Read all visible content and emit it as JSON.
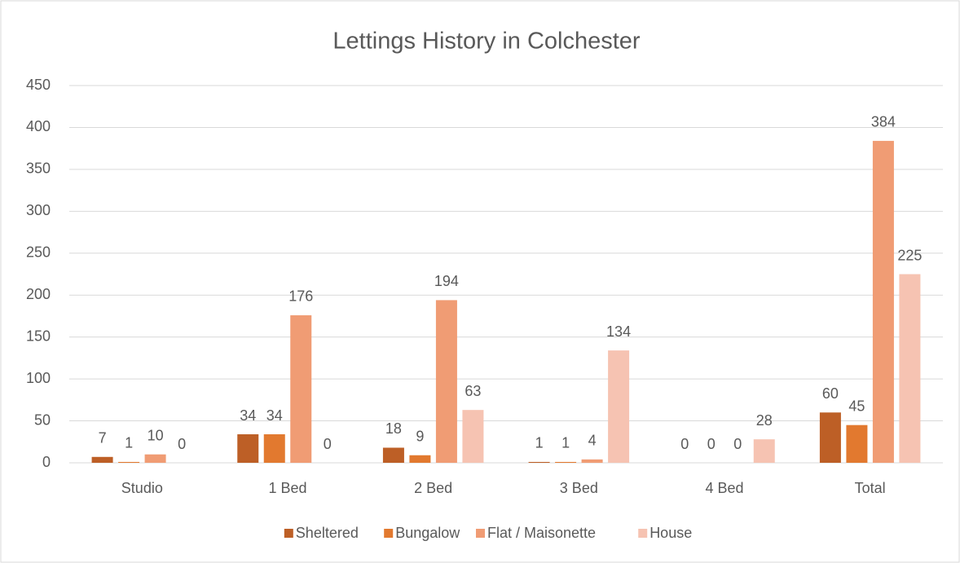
{
  "chart_data": {
    "type": "bar",
    "title": "Lettings History in Colchester",
    "categories": [
      "Studio",
      "1 Bed",
      "2 Bed",
      "3 Bed",
      "4 Bed",
      "Total"
    ],
    "series": [
      {
        "name": "Sheltered",
        "color": "#bd5f26",
        "values": [
          7,
          34,
          18,
          1,
          0,
          60
        ]
      },
      {
        "name": "Bungalow",
        "color": "#e2792f",
        "values": [
          1,
          34,
          9,
          1,
          0,
          45
        ]
      },
      {
        "name": "Flat / Maisonette",
        "color": "#f09c74",
        "values": [
          10,
          176,
          194,
          4,
          0,
          384
        ]
      },
      {
        "name": "House",
        "color": "#f6c3b2",
        "values": [
          0,
          0,
          63,
          134,
          28,
          225
        ]
      }
    ],
    "ylim": [
      0,
      450
    ],
    "yticks": [
      0,
      50,
      100,
      150,
      200,
      250,
      300,
      350,
      400,
      450
    ],
    "grid": true,
    "legend": "bottom"
  }
}
